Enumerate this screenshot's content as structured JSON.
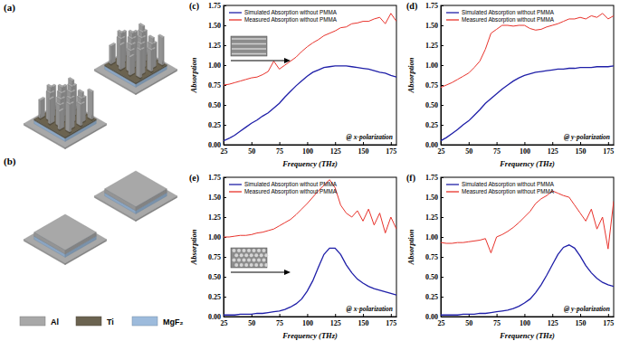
{
  "chart_data": [
    {
      "type": "line",
      "title": "(c)",
      "x_label": "Frequency (THz)",
      "y_label": "Absorption",
      "x": [
        25,
        30,
        35,
        40,
        45,
        50,
        55,
        60,
        65,
        70,
        75,
        80,
        85,
        90,
        95,
        100,
        105,
        110,
        115,
        120,
        125,
        130,
        135,
        140,
        145,
        150,
        155,
        160,
        165,
        170,
        175,
        180
      ],
      "xlim": [
        25,
        180
      ],
      "xticks": [
        25,
        50,
        75,
        100,
        125,
        150,
        175
      ],
      "ylim": [
        0,
        1.75
      ],
      "yticks": [
        {
          "value": 0,
          "label": "0.00"
        },
        {
          "value": 0.25,
          "label": "0.25"
        },
        {
          "value": 0.5,
          "label": "0.50"
        },
        {
          "value": 0.75,
          "label": "0.75"
        },
        {
          "value": 1,
          "label": "1.00"
        },
        {
          "value": 1.25,
          "label": "1.25"
        },
        {
          "value": 1.5,
          "label": "1.50"
        },
        {
          "value": 1.75,
          "label": "1.75"
        }
      ],
      "grid": false,
      "legend": "upper left",
      "annotations": [
        "@ x-polarization"
      ],
      "series": [
        {
          "name": "Simulated Absorption without PMMA",
          "color": "#1f1fa8",
          "values": [
            0.05,
            0.08,
            0.12,
            0.17,
            0.22,
            0.27,
            0.31,
            0.36,
            0.4,
            0.46,
            0.52,
            0.6,
            0.67,
            0.74,
            0.8,
            0.86,
            0.91,
            0.94,
            0.97,
            0.98,
            0.99,
            0.99,
            0.99,
            0.98,
            0.97,
            0.96,
            0.95,
            0.93,
            0.91,
            0.9,
            0.87,
            0.85
          ]
        },
        {
          "name": "Measured Absorption without PMMA",
          "color": "#e8322b",
          "values": [
            0.75,
            0.76,
            0.78,
            0.8,
            0.82,
            0.84,
            0.85,
            0.88,
            0.92,
            1.05,
            0.95,
            1.0,
            1.05,
            1.1,
            1.17,
            1.23,
            1.28,
            1.32,
            1.37,
            1.4,
            1.43,
            1.47,
            1.48,
            1.52,
            1.53,
            1.55,
            1.55,
            1.58,
            1.6,
            1.52,
            1.65,
            1.55
          ]
        }
      ]
    },
    {
      "type": "line",
      "title": "(d)",
      "x_label": "Frequency (THz)",
      "y_label": "Absorption",
      "x": [
        25,
        30,
        35,
        40,
        45,
        50,
        55,
        60,
        65,
        70,
        75,
        80,
        85,
        90,
        95,
        100,
        105,
        110,
        115,
        120,
        125,
        130,
        135,
        140,
        145,
        150,
        155,
        160,
        165,
        170,
        175,
        180
      ],
      "xlim": [
        25,
        180
      ],
      "xticks": [
        25,
        50,
        75,
        100,
        125,
        150,
        175
      ],
      "ylim": [
        0,
        1.75
      ],
      "yticks": [
        {
          "value": 0,
          "label": "0.00"
        },
        {
          "value": 0.25,
          "label": "0.25"
        },
        {
          "value": 0.5,
          "label": "0.50"
        },
        {
          "value": 0.75,
          "label": "0.75"
        },
        {
          "value": 1,
          "label": "1.00"
        },
        {
          "value": 1.25,
          "label": "1.25"
        },
        {
          "value": 1.5,
          "label": "1.50"
        },
        {
          "value": 1.75,
          "label": "1.75"
        }
      ],
      "grid": false,
      "legend": "upper left",
      "annotations": [
        "@ y-polarization"
      ],
      "series": [
        {
          "name": "Simulated Absorption without PMMA",
          "color": "#1f1fa8",
          "values": [
            0.05,
            0.09,
            0.14,
            0.19,
            0.25,
            0.3,
            0.37,
            0.44,
            0.52,
            0.58,
            0.64,
            0.7,
            0.75,
            0.8,
            0.84,
            0.87,
            0.89,
            0.91,
            0.92,
            0.93,
            0.94,
            0.95,
            0.95,
            0.96,
            0.96,
            0.97,
            0.97,
            0.97,
            0.98,
            0.98,
            0.98,
            0.99
          ]
        },
        {
          "name": "Measured Absorption without PMMA",
          "color": "#e8322b",
          "values": [
            0.72,
            0.75,
            0.78,
            0.82,
            0.86,
            0.9,
            0.97,
            1.05,
            1.2,
            1.4,
            1.45,
            1.5,
            1.5,
            1.49,
            1.5,
            1.5,
            1.46,
            1.44,
            1.45,
            1.48,
            1.5,
            1.52,
            1.55,
            1.58,
            1.58,
            1.6,
            1.58,
            1.62,
            1.6,
            1.65,
            1.58,
            1.62
          ]
        }
      ]
    },
    {
      "type": "line",
      "title": "(e)",
      "x_label": "Frequency (THz)",
      "y_label": "Absorption",
      "x": [
        25,
        30,
        35,
        40,
        45,
        50,
        55,
        60,
        65,
        70,
        75,
        80,
        85,
        90,
        95,
        100,
        105,
        110,
        115,
        120,
        125,
        130,
        135,
        140,
        145,
        150,
        155,
        160,
        165,
        170,
        175,
        180
      ],
      "xlim": [
        25,
        180
      ],
      "xticks": [
        25,
        50,
        75,
        100,
        125,
        150,
        175
      ],
      "ylim": [
        0,
        1.75
      ],
      "yticks": [
        {
          "value": 0,
          "label": "0.00"
        },
        {
          "value": 0.25,
          "label": "0.25"
        },
        {
          "value": 0.5,
          "label": "0.50"
        },
        {
          "value": 0.75,
          "label": "0.75"
        },
        {
          "value": 1,
          "label": "1.00"
        },
        {
          "value": 1.25,
          "label": "1.25"
        },
        {
          "value": 1.5,
          "label": "1.50"
        },
        {
          "value": 1.75,
          "label": "1.75"
        }
      ],
      "grid": false,
      "legend": "upper left",
      "annotations": [
        "@ x-polarization"
      ],
      "series": [
        {
          "name": "Simulated Absorption without PMMA",
          "color": "#1f1fa8",
          "values": [
            0.02,
            0.02,
            0.02,
            0.03,
            0.03,
            0.03,
            0.04,
            0.04,
            0.05,
            0.06,
            0.07,
            0.09,
            0.12,
            0.16,
            0.22,
            0.32,
            0.45,
            0.62,
            0.78,
            0.86,
            0.86,
            0.78,
            0.65,
            0.55,
            0.47,
            0.42,
            0.38,
            0.35,
            0.33,
            0.31,
            0.29,
            0.27
          ]
        },
        {
          "name": "Measured Absorption without PMMA",
          "color": "#e8322b",
          "values": [
            1.0,
            1.0,
            1.01,
            1.02,
            1.02,
            1.03,
            1.05,
            1.06,
            1.08,
            1.1,
            1.14,
            1.18,
            1.22,
            1.28,
            1.35,
            1.42,
            1.5,
            1.58,
            1.65,
            1.72,
            1.62,
            1.4,
            1.3,
            1.25,
            1.33,
            1.2,
            1.35,
            1.15,
            1.3,
            1.05,
            1.25,
            1.1
          ]
        }
      ]
    },
    {
      "type": "line",
      "title": "(f)",
      "x_label": "Frequency (THz)",
      "y_label": "Absorption",
      "x": [
        25,
        30,
        35,
        40,
        45,
        50,
        55,
        60,
        65,
        70,
        75,
        80,
        85,
        90,
        95,
        100,
        105,
        110,
        115,
        120,
        125,
        130,
        135,
        140,
        145,
        150,
        155,
        160,
        165,
        170,
        175,
        180
      ],
      "xlim": [
        25,
        180
      ],
      "xticks": [
        25,
        50,
        75,
        100,
        125,
        150,
        175
      ],
      "ylim": [
        0,
        1.75
      ],
      "yticks": [
        {
          "value": 0,
          "label": "0.00"
        },
        {
          "value": 0.25,
          "label": "0.25"
        },
        {
          "value": 0.5,
          "label": "0.50"
        },
        {
          "value": 0.75,
          "label": "0.75"
        },
        {
          "value": 1,
          "label": "1.00"
        },
        {
          "value": 1.25,
          "label": "1.25"
        },
        {
          "value": 1.5,
          "label": "1.50"
        },
        {
          "value": 1.75,
          "label": "1.75"
        }
      ],
      "grid": false,
      "legend": "upper left",
      "annotations": [
        "@ y-polarization"
      ],
      "series": [
        {
          "name": "Simulated Absorption without PMMA",
          "color": "#1f1fa8",
          "values": [
            0.02,
            0.02,
            0.02,
            0.02,
            0.03,
            0.03,
            0.03,
            0.04,
            0.04,
            0.05,
            0.06,
            0.07,
            0.08,
            0.1,
            0.13,
            0.17,
            0.22,
            0.3,
            0.4,
            0.52,
            0.65,
            0.78,
            0.87,
            0.9,
            0.86,
            0.76,
            0.64,
            0.55,
            0.48,
            0.43,
            0.4,
            0.38
          ]
        },
        {
          "name": "Measured Absorption without PMMA",
          "color": "#e8322b",
          "values": [
            0.93,
            0.92,
            0.92,
            0.93,
            0.93,
            0.94,
            0.95,
            0.96,
            0.98,
            0.8,
            1.0,
            1.03,
            1.07,
            1.12,
            1.18,
            1.25,
            1.32,
            1.42,
            1.48,
            1.52,
            1.58,
            1.55,
            1.52,
            1.5,
            1.4,
            1.3,
            1.2,
            1.35,
            1.1,
            1.25,
            0.85,
            1.45
          ]
        }
      ]
    }
  ],
  "figure": {
    "panels": [
      "(a)",
      "(b)"
    ],
    "materials": [
      {
        "name": "Al",
        "color": "#a8a8a8"
      },
      {
        "name": "Ti",
        "color": "#6b6350"
      },
      {
        "name": "MgF₂",
        "color": "#9dbbdc"
      }
    ]
  }
}
